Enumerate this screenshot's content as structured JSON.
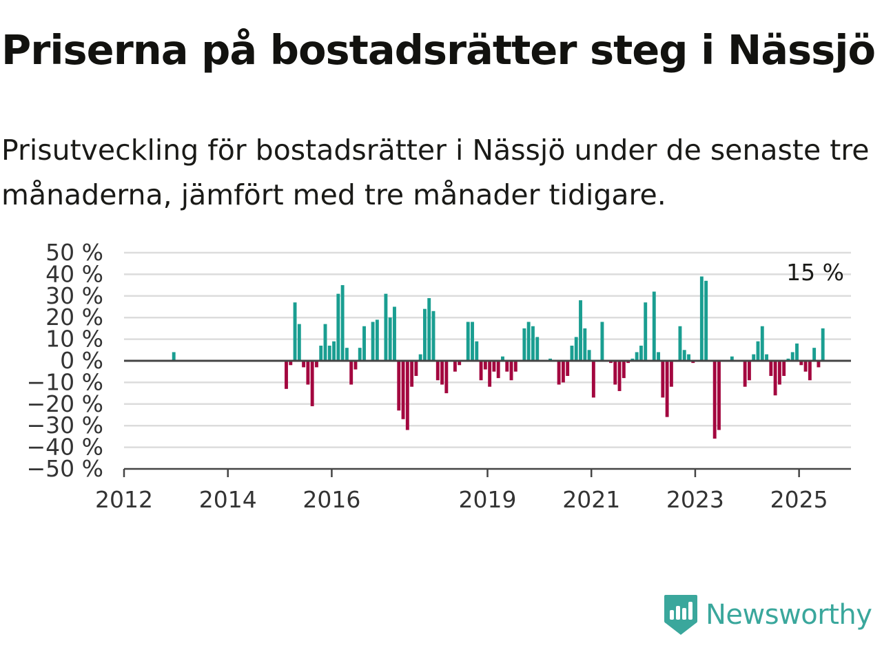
{
  "header": {
    "title": "Priserna på bostadsrätter steg i Nässjö",
    "subtitle": "Prisutveckling för bostadsrätter i Nässjö under de senaste tre månaderna, jämfört med tre månader tidigare."
  },
  "logo": {
    "text": "Newsworthy",
    "icon": "newsworthy-logo-icon",
    "color": "#3aa79c"
  },
  "chart_data": {
    "type": "bar",
    "title": "Priserna på bostadsrätter steg i Nässjö",
    "subtitle": "Prisutveckling för bostadsrätter i Nässjö under de senaste tre månaderna, jämfört med tre månader tidigare.",
    "x_axis": {
      "type": "date",
      "range": [
        "2012-01",
        "2026-01"
      ],
      "ticks": [
        {
          "value": "2012-01",
          "label": "2012"
        },
        {
          "value": "2014-01",
          "label": "2014"
        },
        {
          "value": "2016-01",
          "label": "2016"
        },
        {
          "value": "2019-01",
          "label": "2019"
        },
        {
          "value": "2021-01",
          "label": "2021"
        },
        {
          "value": "2023-01",
          "label": "2023"
        },
        {
          "value": "2025-01",
          "label": "2025"
        }
      ]
    },
    "y_axis": {
      "range": [
        -50,
        50
      ],
      "unit": "%",
      "ticks": [
        {
          "value": 50,
          "label": "50 %"
        },
        {
          "value": 40,
          "label": "40 %"
        },
        {
          "value": 30,
          "label": "30 %"
        },
        {
          "value": 20,
          "label": "20 %"
        },
        {
          "value": 10,
          "label": "10 %"
        },
        {
          "value": 0,
          "label": "0 %"
        },
        {
          "value": -10,
          "label": "−10 %"
        },
        {
          "value": -20,
          "label": "−20 %"
        },
        {
          "value": -30,
          "label": "−30 %"
        },
        {
          "value": -40,
          "label": "−40 %"
        },
        {
          "value": -50,
          "label": "−50 %"
        }
      ]
    },
    "grid": true,
    "colors": {
      "positive": "#1a9e91",
      "negative": "#a3073f",
      "grid": "#dcdcdc",
      "axis": "#444444"
    },
    "annotation": {
      "text": "15 %",
      "x": "2025-07",
      "value": 15
    },
    "points": [
      {
        "x": "2012-12",
        "value": 4
      },
      {
        "x": "2015-02",
        "value": -13
      },
      {
        "x": "2015-03",
        "value": -2
      },
      {
        "x": "2015-04",
        "value": 27
      },
      {
        "x": "2015-05",
        "value": 17
      },
      {
        "x": "2015-06",
        "value": -3
      },
      {
        "x": "2015-07",
        "value": -11
      },
      {
        "x": "2015-08",
        "value": -21
      },
      {
        "x": "2015-09",
        "value": -3
      },
      {
        "x": "2015-10",
        "value": 7
      },
      {
        "x": "2015-11",
        "value": 17
      },
      {
        "x": "2015-12",
        "value": 7
      },
      {
        "x": "2016-01",
        "value": 9
      },
      {
        "x": "2016-02",
        "value": 31
      },
      {
        "x": "2016-03",
        "value": 35
      },
      {
        "x": "2016-04",
        "value": 6
      },
      {
        "x": "2016-05",
        "value": -11
      },
      {
        "x": "2016-06",
        "value": -4
      },
      {
        "x": "2016-07",
        "value": 6
      },
      {
        "x": "2016-08",
        "value": 16
      },
      {
        "x": "2016-10",
        "value": 18
      },
      {
        "x": "2016-11",
        "value": 19
      },
      {
        "x": "2017-01",
        "value": 31
      },
      {
        "x": "2017-02",
        "value": 20
      },
      {
        "x": "2017-03",
        "value": 25
      },
      {
        "x": "2017-04",
        "value": -23
      },
      {
        "x": "2017-05",
        "value": -27
      },
      {
        "x": "2017-06",
        "value": -32
      },
      {
        "x": "2017-07",
        "value": -12
      },
      {
        "x": "2017-08",
        "value": -7
      },
      {
        "x": "2017-09",
        "value": 3
      },
      {
        "x": "2017-10",
        "value": 24
      },
      {
        "x": "2017-11",
        "value": 29
      },
      {
        "x": "2017-12",
        "value": 23
      },
      {
        "x": "2018-01",
        "value": -9
      },
      {
        "x": "2018-02",
        "value": -11
      },
      {
        "x": "2018-03",
        "value": -15
      },
      {
        "x": "2018-05",
        "value": -5
      },
      {
        "x": "2018-06",
        "value": -2
      },
      {
        "x": "2018-08",
        "value": 18
      },
      {
        "x": "2018-09",
        "value": 18
      },
      {
        "x": "2018-10",
        "value": 9
      },
      {
        "x": "2018-11",
        "value": -9
      },
      {
        "x": "2018-12",
        "value": -4
      },
      {
        "x": "2019-01",
        "value": -12
      },
      {
        "x": "2019-02",
        "value": -5
      },
      {
        "x": "2019-03",
        "value": -8
      },
      {
        "x": "2019-04",
        "value": 2
      },
      {
        "x": "2019-05",
        "value": -5
      },
      {
        "x": "2019-06",
        "value": -9
      },
      {
        "x": "2019-07",
        "value": -5
      },
      {
        "x": "2019-09",
        "value": 15
      },
      {
        "x": "2019-10",
        "value": 18
      },
      {
        "x": "2019-11",
        "value": 16
      },
      {
        "x": "2019-12",
        "value": 11
      },
      {
        "x": "2020-03",
        "value": 1
      },
      {
        "x": "2020-05",
        "value": -11
      },
      {
        "x": "2020-06",
        "value": -10
      },
      {
        "x": "2020-07",
        "value": -7
      },
      {
        "x": "2020-08",
        "value": 7
      },
      {
        "x": "2020-09",
        "value": 11
      },
      {
        "x": "2020-10",
        "value": 28
      },
      {
        "x": "2020-11",
        "value": 15
      },
      {
        "x": "2020-12",
        "value": 5
      },
      {
        "x": "2021-01",
        "value": -17
      },
      {
        "x": "2021-03",
        "value": 18
      },
      {
        "x": "2021-05",
        "value": -1
      },
      {
        "x": "2021-06",
        "value": -11
      },
      {
        "x": "2021-07",
        "value": -14
      },
      {
        "x": "2021-08",
        "value": -8
      },
      {
        "x": "2021-09",
        "value": -1
      },
      {
        "x": "2021-10",
        "value": 1
      },
      {
        "x": "2021-11",
        "value": 4
      },
      {
        "x": "2021-12",
        "value": 7
      },
      {
        "x": "2022-01",
        "value": 27
      },
      {
        "x": "2022-03",
        "value": 32
      },
      {
        "x": "2022-04",
        "value": 4
      },
      {
        "x": "2022-05",
        "value": -17
      },
      {
        "x": "2022-06",
        "value": -26
      },
      {
        "x": "2022-07",
        "value": -12
      },
      {
        "x": "2022-09",
        "value": 16
      },
      {
        "x": "2022-10",
        "value": 5
      },
      {
        "x": "2022-11",
        "value": 3
      },
      {
        "x": "2022-12",
        "value": -1
      },
      {
        "x": "2023-02",
        "value": 39
      },
      {
        "x": "2023-03",
        "value": 37
      },
      {
        "x": "2023-05",
        "value": -36
      },
      {
        "x": "2023-06",
        "value": -32
      },
      {
        "x": "2023-09",
        "value": 2
      },
      {
        "x": "2023-12",
        "value": -12
      },
      {
        "x": "2024-01",
        "value": -9
      },
      {
        "x": "2024-02",
        "value": 3
      },
      {
        "x": "2024-03",
        "value": 9
      },
      {
        "x": "2024-04",
        "value": 16
      },
      {
        "x": "2024-05",
        "value": 3
      },
      {
        "x": "2024-06",
        "value": -7
      },
      {
        "x": "2024-07",
        "value": -16
      },
      {
        "x": "2024-08",
        "value": -11
      },
      {
        "x": "2024-09",
        "value": -7
      },
      {
        "x": "2024-10",
        "value": 1
      },
      {
        "x": "2024-11",
        "value": 4
      },
      {
        "x": "2024-12",
        "value": 8
      },
      {
        "x": "2025-01",
        "value": -2
      },
      {
        "x": "2025-02",
        "value": -5
      },
      {
        "x": "2025-03",
        "value": -9
      },
      {
        "x": "2025-04",
        "value": 6
      },
      {
        "x": "2025-05",
        "value": -3
      },
      {
        "x": "2025-06",
        "value": 15
      }
    ]
  }
}
